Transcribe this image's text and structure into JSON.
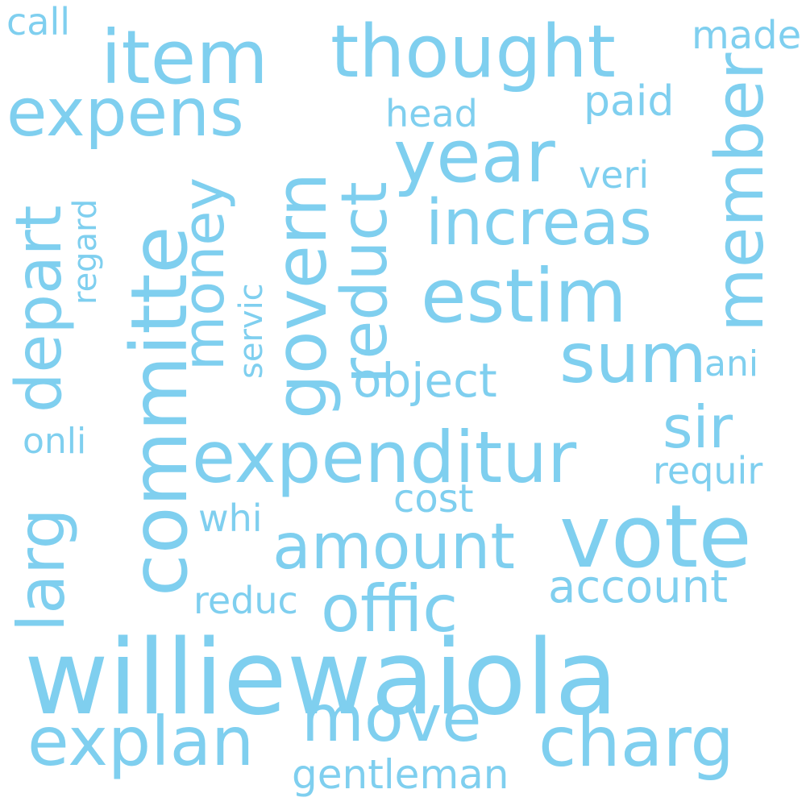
{
  "word_color": "#7fcfef",
  "words": [
    {
      "text": "williewaiola"
    },
    {
      "text": "vote"
    },
    {
      "text": "committe"
    },
    {
      "text": "expenditur"
    },
    {
      "text": "item"
    },
    {
      "text": "thought"
    },
    {
      "text": "expens"
    },
    {
      "text": "year"
    },
    {
      "text": "estim"
    },
    {
      "text": "increas"
    },
    {
      "text": "member"
    },
    {
      "text": "sum"
    },
    {
      "text": "govern"
    },
    {
      "text": "reduct"
    },
    {
      "text": "money"
    },
    {
      "text": "depart"
    },
    {
      "text": "larg"
    },
    {
      "text": "amount"
    },
    {
      "text": "offic"
    },
    {
      "text": "charg"
    },
    {
      "text": "explan"
    },
    {
      "text": "move"
    },
    {
      "text": "sir"
    },
    {
      "text": "object"
    },
    {
      "text": "account"
    },
    {
      "text": "call"
    },
    {
      "text": "made"
    },
    {
      "text": "paid"
    },
    {
      "text": "head"
    },
    {
      "text": "veri"
    },
    {
      "text": "regard"
    },
    {
      "text": "servic"
    },
    {
      "text": "ani"
    },
    {
      "text": "onli"
    },
    {
      "text": "requir"
    },
    {
      "text": "cost"
    },
    {
      "text": "whi"
    },
    {
      "text": "reduc"
    },
    {
      "text": "gentleman"
    }
  ]
}
